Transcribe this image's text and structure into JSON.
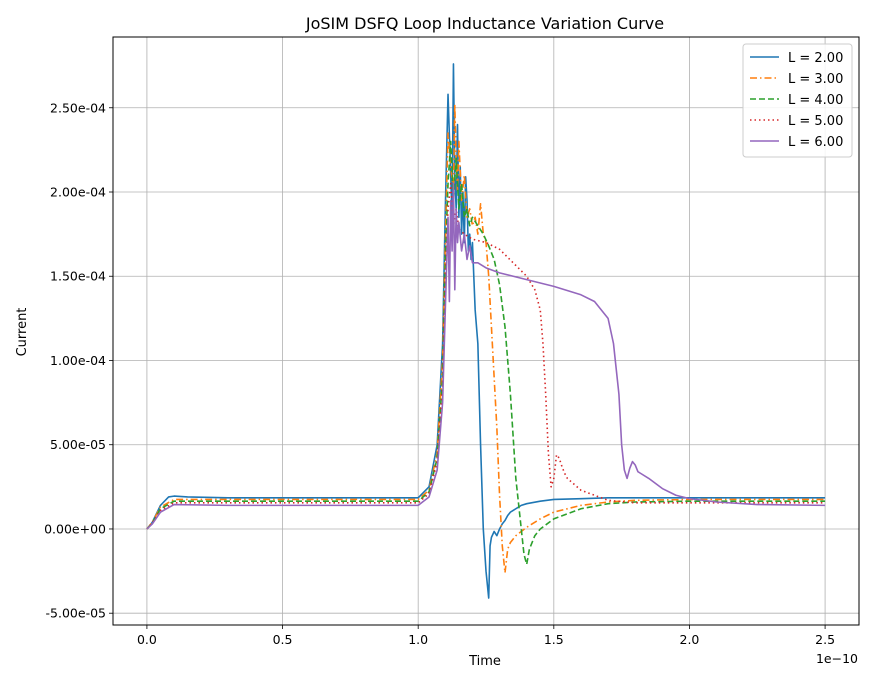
{
  "chart_data": {
    "type": "line",
    "title": "JoSIM DSFQ Loop Inductance Variation Curve",
    "xlabel": "Time",
    "ylabel": "Current",
    "x_offset_label": "1e−10",
    "x_scale": 1e-10,
    "xlim": [
      -1.25e-11,
      2.625e-10
    ],
    "ylim": [
      -5.7e-05,
      0.000292
    ],
    "xticks": [
      0,
      5e-11,
      1e-10,
      1.5e-10,
      2e-10,
      2.5e-10
    ],
    "xtick_labels": [
      "0.0",
      "0.5",
      "1.0",
      "1.5",
      "2.0",
      "2.5"
    ],
    "yticks": [
      -5e-05,
      0,
      5e-05,
      0.0001,
      0.00015,
      0.0002,
      0.00025
    ],
    "ytick_labels": [
      "-5.00e-05",
      "0.00e+00",
      "5.00e-05",
      "1.00e-04",
      "1.50e-04",
      "2.00e-04",
      "2.50e-04"
    ],
    "grid": true,
    "legend_position": "top-right",
    "series": [
      {
        "name": "L = 2.00",
        "color": "#1f77b4",
        "style": "solid",
        "x": [
          0,
          2e-12,
          5e-12,
          8e-12,
          1e-11,
          1.5e-11,
          3e-11,
          6e-11,
          9e-11,
          1e-10,
          1.04e-10,
          1.07e-10,
          1.09e-10,
          1.1e-10,
          1.11e-10,
          1.12e-10,
          1.125e-10,
          1.13e-10,
          1.135e-10,
          1.14e-10,
          1.145e-10,
          1.15e-10,
          1.155e-10,
          1.16e-10,
          1.165e-10,
          1.17e-10,
          1.175e-10,
          1.18e-10,
          1.185e-10,
          1.19e-10,
          1.195e-10,
          1.2e-10,
          1.205e-10,
          1.21e-10,
          1.22e-10,
          1.23e-10,
          1.24e-10,
          1.25e-10,
          1.26e-10,
          1.265e-10,
          1.27e-10,
          1.28e-10,
          1.29e-10,
          1.3e-10,
          1.31e-10,
          1.32e-10,
          1.33e-10,
          1.34e-10,
          1.35e-10,
          1.36e-10,
          1.37e-10,
          1.38e-10,
          1.4e-10,
          1.45e-10,
          1.5e-10,
          1.6e-10,
          1.7e-10,
          1.8e-10,
          2e-10,
          2.25e-10,
          2.5e-10
        ],
        "y": [
          0,
          4e-06,
          1.4e-05,
          1.9e-05,
          1.95e-05,
          1.9e-05,
          1.85e-05,
          1.85e-05,
          1.85e-05,
          1.85e-05,
          2.5e-05,
          5e-05,
          0.00011,
          0.00019,
          0.000258,
          0.00021,
          0.000185,
          0.000276,
          0.00021,
          0.00019,
          0.00024,
          0.000185,
          0.000215,
          0.000175,
          0.0002,
          0.00017,
          0.000209,
          0.000195,
          0.000165,
          0.000175,
          0.00016,
          0.00017,
          0.00015,
          0.00013,
          0.00011,
          5e-05,
          0,
          -2.5e-05,
          -4.1e-05,
          -1e-05,
          -5e-06,
          -1.5e-06,
          -4e-06,
          0,
          3e-06,
          5e-06,
          8e-06,
          1e-05,
          1.1e-05,
          1.2e-05,
          1.3e-05,
          1.4e-05,
          1.5e-05,
          1.65e-05,
          1.75e-05,
          1.8e-05,
          1.85e-05,
          1.85e-05,
          1.85e-05,
          1.85e-05,
          1.85e-05
        ]
      },
      {
        "name": "L = 3.00",
        "color": "#ff7f0e",
        "style": "dashdot",
        "x": [
          0,
          2e-12,
          5e-12,
          1e-11,
          3e-11,
          6e-11,
          9e-11,
          1e-10,
          1.04e-10,
          1.07e-10,
          1.09e-10,
          1.1e-10,
          1.11e-10,
          1.12e-10,
          1.13e-10,
          1.135e-10,
          1.14e-10,
          1.145e-10,
          1.15e-10,
          1.16e-10,
          1.17e-10,
          1.18e-10,
          1.19e-10,
          1.2e-10,
          1.21e-10,
          1.22e-10,
          1.23e-10,
          1.24e-10,
          1.25e-10,
          1.26e-10,
          1.27e-10,
          1.28e-10,
          1.29e-10,
          1.3e-10,
          1.31e-10,
          1.32e-10,
          1.33e-10,
          1.34e-10,
          1.36e-10,
          1.4e-10,
          1.45e-10,
          1.5e-10,
          1.6e-10,
          1.7e-10,
          1.8e-10,
          2e-10,
          2.25e-10,
          2.5e-10
        ],
        "y": [
          0,
          4e-06,
          1.3e-05,
          1.75e-05,
          1.75e-05,
          1.75e-05,
          1.75e-05,
          1.75e-05,
          2.3e-05,
          4.5e-05,
          0.0001,
          0.00017,
          0.000235,
          0.000215,
          0.0002,
          0.000252,
          0.00022,
          0.0002,
          0.00023,
          0.000195,
          0.00021,
          0.000185,
          0.00019,
          0.00018,
          0.000185,
          0.000175,
          0.000193,
          0.000175,
          0.00017,
          0.00015,
          0.00012,
          9e-05,
          6e-05,
          2e-05,
          -1e-05,
          -2.6e-05,
          -1.2e-05,
          -8e-06,
          -4e-06,
          1e-06,
          6e-06,
          1e-05,
          1.4e-05,
          1.6e-05,
          1.7e-05,
          1.75e-05,
          1.75e-05,
          1.75e-05
        ]
      },
      {
        "name": "L = 4.00",
        "color": "#2ca02c",
        "style": "dashed",
        "x": [
          0,
          2e-12,
          5e-12,
          1e-11,
          3e-11,
          6e-11,
          9e-11,
          1e-10,
          1.04e-10,
          1.07e-10,
          1.09e-10,
          1.1e-10,
          1.11e-10,
          1.12e-10,
          1.13e-10,
          1.14e-10,
          1.15e-10,
          1.16e-10,
          1.17e-10,
          1.18e-10,
          1.19e-10,
          1.2e-10,
          1.22e-10,
          1.24e-10,
          1.26e-10,
          1.28e-10,
          1.3e-10,
          1.32e-10,
          1.34e-10,
          1.36e-10,
          1.38e-10,
          1.39e-10,
          1.4e-10,
          1.41e-10,
          1.42e-10,
          1.43e-10,
          1.45e-10,
          1.5e-10,
          1.6e-10,
          1.7e-10,
          1.8e-10,
          2e-10,
          2.25e-10,
          2.5e-10
        ],
        "y": [
          0,
          3.5e-06,
          1.2e-05,
          1.65e-05,
          1.65e-05,
          1.65e-05,
          1.65e-05,
          1.65e-05,
          2.2e-05,
          4.2e-05,
          9e-05,
          0.00016,
          0.000205,
          0.00023,
          0.000195,
          0.00022,
          0.00019,
          0.000205,
          0.000185,
          0.00019,
          0.00018,
          0.000185,
          0.00018,
          0.000175,
          0.000168,
          0.00016,
          0.000145,
          0.00012,
          8e-05,
          3e-05,
          0,
          -1.5e-05,
          -2.1e-05,
          -1.2e-05,
          -8e-06,
          -4e-06,
          0,
          6e-06,
          1.2e-05,
          1.5e-05,
          1.6e-05,
          1.65e-05,
          1.65e-05,
          1.65e-05
        ]
      },
      {
        "name": "L = 5.00",
        "color": "#d62728",
        "style": "dotted",
        "x": [
          0,
          2e-12,
          5e-12,
          1e-11,
          3e-11,
          6e-11,
          9e-11,
          1e-10,
          1.04e-10,
          1.07e-10,
          1.09e-10,
          1.1e-10,
          1.11e-10,
          1.12e-10,
          1.13e-10,
          1.14e-10,
          1.15e-10,
          1.17e-10,
          1.2e-10,
          1.25e-10,
          1.3e-10,
          1.35e-10,
          1.4e-10,
          1.43e-10,
          1.45e-10,
          1.46e-10,
          1.47e-10,
          1.48e-10,
          1.49e-10,
          1.5e-10,
          1.51e-10,
          1.52e-10,
          1.53e-10,
          1.54e-10,
          1.55e-10,
          1.6e-10,
          1.7e-10,
          1.8e-10,
          2e-10,
          2.25e-10,
          2.5e-10
        ],
        "y": [
          0,
          3.5e-06,
          1.1e-05,
          1.55e-05,
          1.55e-05,
          1.55e-05,
          1.55e-05,
          1.55e-05,
          2.1e-05,
          4e-05,
          8.5e-05,
          0.00015,
          0.00019,
          0.000205,
          0.00018,
          0.00019,
          0.000178,
          0.000175,
          0.000172,
          0.00017,
          0.000166,
          0.000158,
          0.00015,
          0.000142,
          0.00013,
          0.00011,
          8e-05,
          4.5e-05,
          2.5e-05,
          3e-05,
          4.4e-05,
          4.2e-05,
          3.7e-05,
          3.3e-05,
          3e-05,
          2.3e-05,
          1.7e-05,
          1.55e-05,
          1.55e-05,
          1.55e-05,
          1.55e-05
        ]
      },
      {
        "name": "L = 6.00",
        "color": "#9467bd",
        "style": "solid",
        "x": [
          0,
          2e-12,
          5e-12,
          1e-11,
          3e-11,
          6e-11,
          9e-11,
          1e-10,
          1.04e-10,
          1.07e-10,
          1.09e-10,
          1.1e-10,
          1.11e-10,
          1.115e-10,
          1.12e-10,
          1.125e-10,
          1.13e-10,
          1.135e-10,
          1.14e-10,
          1.145e-10,
          1.15e-10,
          1.16e-10,
          1.17e-10,
          1.18e-10,
          1.19e-10,
          1.2e-10,
          1.22e-10,
          1.25e-10,
          1.3e-10,
          1.4e-10,
          1.5e-10,
          1.6e-10,
          1.65e-10,
          1.7e-10,
          1.72e-10,
          1.74e-10,
          1.75e-10,
          1.76e-10,
          1.77e-10,
          1.78e-10,
          1.79e-10,
          1.8e-10,
          1.81e-10,
          1.82e-10,
          1.85e-10,
          1.9e-10,
          1.95e-10,
          2e-10,
          2.1e-10,
          2.25e-10,
          2.5e-10
        ],
        "y": [
          0,
          3e-06,
          1e-05,
          1.45e-05,
          1.4e-05,
          1.4e-05,
          1.4e-05,
          1.4e-05,
          1.9e-05,
          3.5e-05,
          7.5e-05,
          0.00013,
          0.000185,
          0.000135,
          0.000195,
          0.000165,
          0.000205,
          0.000142,
          0.00019,
          0.00017,
          0.000182,
          0.000165,
          0.000175,
          0.00016,
          0.000168,
          0.000158,
          0.000158,
          0.000155,
          0.000152,
          0.000148,
          0.000144,
          0.000139,
          0.000135,
          0.000125,
          0.00011,
          8e-05,
          5e-05,
          3.5e-05,
          3e-05,
          3.6e-05,
          4e-05,
          3.8e-05,
          3.4e-05,
          3.3e-05,
          3e-05,
          2.4e-05,
          2e-05,
          1.8e-05,
          1.6e-05,
          1.45e-05,
          1.4e-05
        ]
      }
    ]
  }
}
